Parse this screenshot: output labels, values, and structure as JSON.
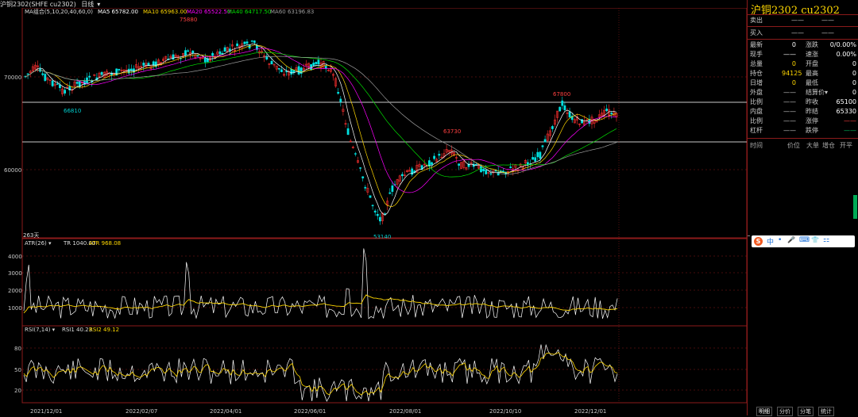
{
  "title_bar": {
    "instrument": "沪铜2302(SHFE cu2302)",
    "period": "日线",
    "chevron": "▾"
  },
  "ma_legend": {
    "group": "MA组合(5,10,20,40,60,0)",
    "items": [
      {
        "label": "MA5 65782.00",
        "color": "#ffffff"
      },
      {
        "label": "MA10 65963.00",
        "color": "#ffd700"
      },
      {
        "label": "MA20 65522.50",
        "color": "#ff00ff"
      },
      {
        "label": "MA40 64717.50",
        "color": "#00e000"
      },
      {
        "label": "MA60 63196.83",
        "color": "#9a9a9a"
      }
    ]
  },
  "price_axis": {
    "labels": [
      "70000",
      "60000"
    ]
  },
  "price_annotations": {
    "high1": "75880",
    "low1": "66810",
    "mid": "63730",
    "high2": "67800",
    "low2": "53140"
  },
  "day_counter": "263天",
  "atr_panel": {
    "legend": "ATR(26)",
    "tr_label": "TR 1040.00",
    "atr_label": "ATR 968.08",
    "axis": [
      "4000",
      "3000",
      "2000",
      "1000"
    ]
  },
  "rsi_panel": {
    "legend": "RSI(7,14)",
    "rsi1_label": "RSI1 40.23",
    "rsi2_label": "RSI2 49.12",
    "axis": [
      "80",
      "50",
      "20"
    ]
  },
  "date_axis": [
    "2021/12/01",
    "2022/02/07",
    "2022/04/01",
    "2022/06/01",
    "2022/08/01",
    "2022/10/10",
    "2022/12/01"
  ],
  "right_panel": {
    "title": "沪铜2302 cu2302",
    "sell_label": "卖出",
    "buy_label": "买入",
    "dash": "——",
    "rows": [
      {
        "l": "最新",
        "v": "0",
        "l2": "涨跌",
        "v2": "0/0.00%"
      },
      {
        "l": "现手",
        "v": "——",
        "l2": "速涨",
        "v2": "0.00%"
      },
      {
        "l": "总量",
        "v": "0",
        "l2": "开盘",
        "v2": "0"
      },
      {
        "l": "持仓",
        "v": "94125",
        "l2": "最高",
        "v2": "0"
      },
      {
        "l": "日增",
        "v": "0",
        "l2": "最低",
        "v2": "0"
      },
      {
        "l": "外盘",
        "v": "——",
        "l2": "结算价▾",
        "v2": "0"
      },
      {
        "l": "比例",
        "v": "——",
        "l2": "昨收",
        "v2": "65100"
      },
      {
        "l": "内盘",
        "v": "——",
        "l2": "昨结",
        "v2": "65330"
      },
      {
        "l": "比例",
        "v": "——",
        "l2": "涨停",
        "v2": "——"
      },
      {
        "l": "杠杆",
        "v": "——",
        "l2": "跌停",
        "v2": "——"
      }
    ],
    "tick_header": [
      "时间",
      "价位",
      "大单",
      "增仓",
      "开平"
    ],
    "sogou_icons": [
      "S",
      "中",
      "•",
      "🎤",
      "⌨",
      "👕",
      "⚏"
    ],
    "tick_header_right": "开平",
    "tabs": [
      "明细",
      "分价",
      "分笔",
      "统计"
    ]
  }
}
